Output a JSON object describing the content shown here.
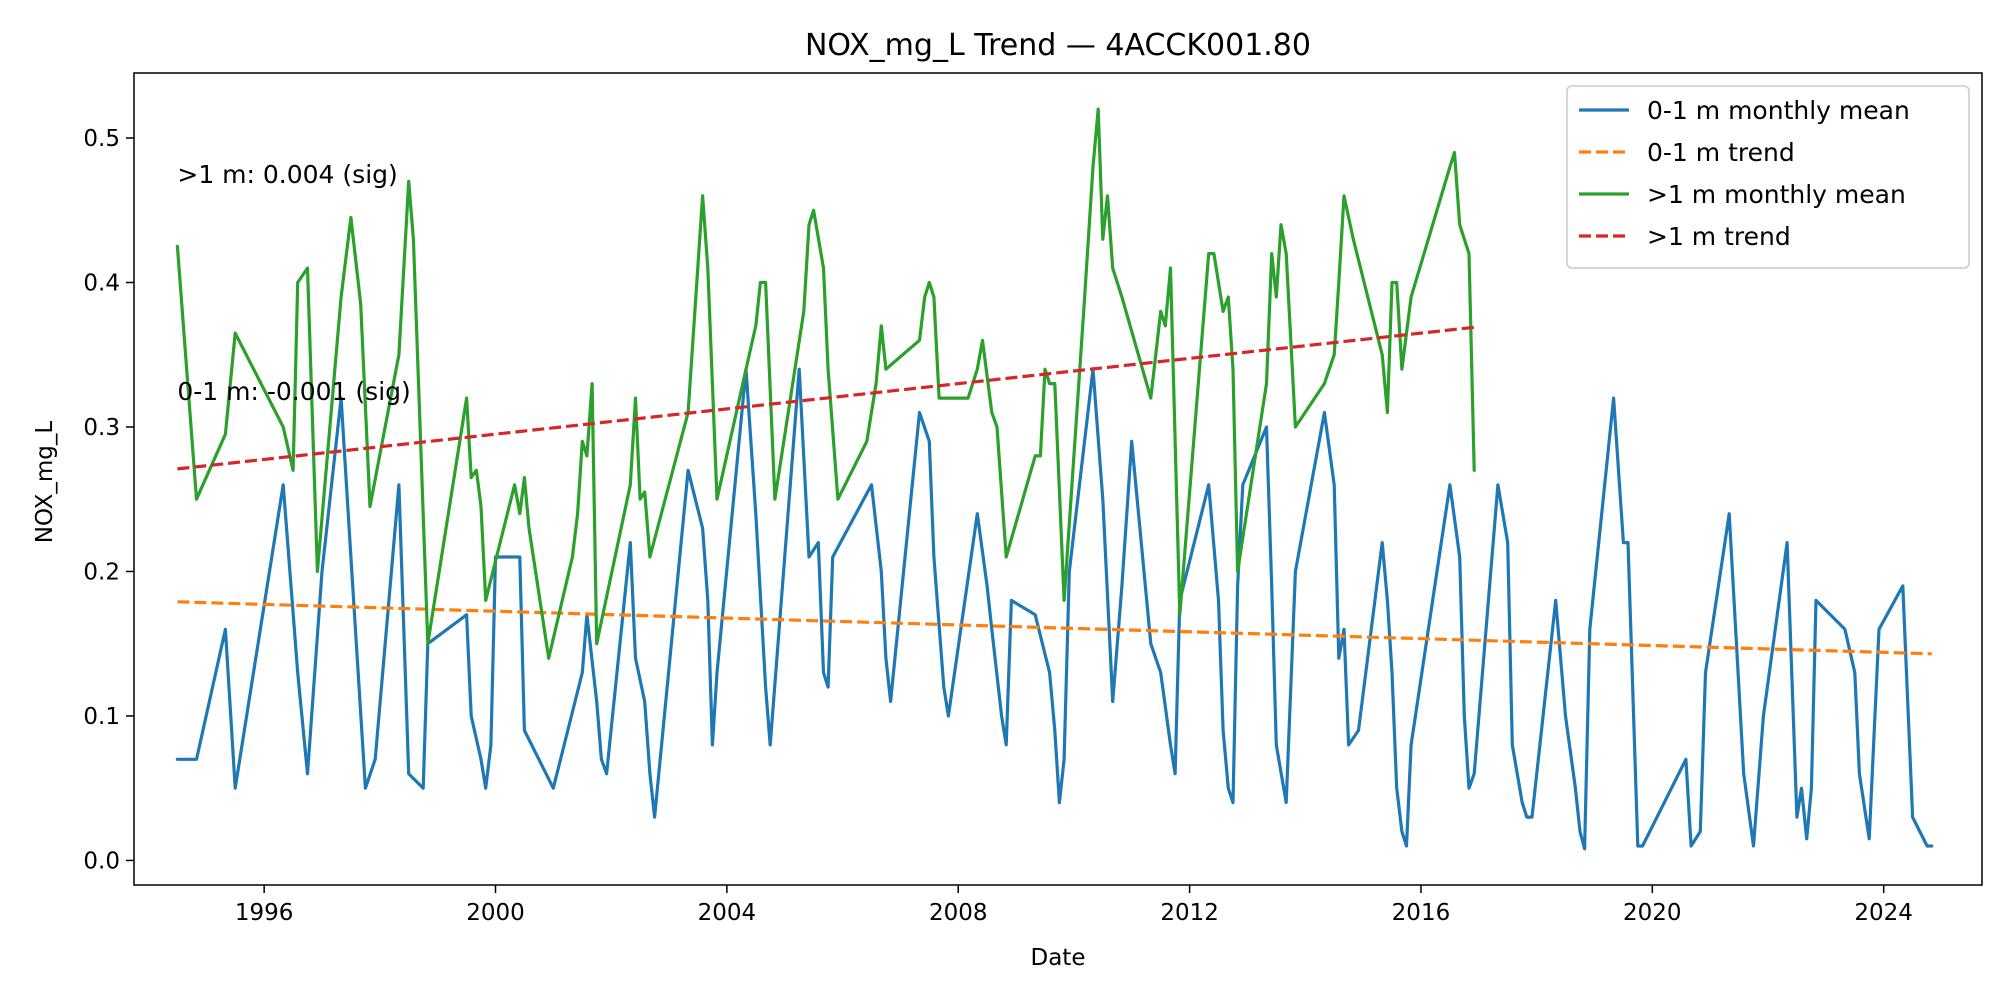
{
  "chart_data": {
    "type": "line",
    "title": "NOX_mg_L Trend — 4ACCK001.80",
    "xlabel": "Date",
    "ylabel": "NOX_mg_L",
    "x_axis": "date (decimal year)",
    "xlim": [
      1993.75,
      2025.7
    ],
    "ylim": [
      -0.017,
      0.545
    ],
    "x_ticks": [
      1996,
      2000,
      2004,
      2008,
      2012,
      2016,
      2020,
      2024
    ],
    "y_ticks": [
      0.0,
      0.1,
      0.2,
      0.3,
      0.4,
      0.5
    ],
    "y_tick_labels": [
      "0.0",
      "0.1",
      "0.2",
      "0.3",
      "0.4",
      "0.5"
    ],
    "grid": false,
    "legend_position": "top-right",
    "annotations": [
      {
        "text": ">1 m: 0.004 (sig)",
        "x": 1994.5,
        "y": 0.475
      },
      {
        "text": "0-1 m: -0.001 (sig)",
        "x": 1994.5,
        "y": 0.325
      }
    ],
    "series": [
      {
        "name": "0-1 m monthly mean",
        "color": "#1f77b4",
        "style": "solid",
        "x": [
          1994.5,
          1994.83,
          1995.33,
          1995.5,
          1996.33,
          1996.58,
          1996.75,
          1997.0,
          1997.33,
          1997.5,
          1997.75,
          1997.92,
          1998.33,
          1998.5,
          1998.75,
          1998.83,
          1999.5,
          1999.58,
          1999.75,
          1999.83,
          1999.92,
          2000.0,
          2000.17,
          2000.33,
          2000.42,
          2000.5,
          2001.0,
          2001.5,
          2001.58,
          2001.75,
          2001.83,
          2001.92,
          2002.33,
          2002.42,
          2002.58,
          2002.67,
          2002.75,
          2003.33,
          2003.58,
          2003.67,
          2003.75,
          2003.83,
          2004.33,
          2004.5,
          2004.67,
          2004.75,
          2005.25,
          2005.42,
          2005.58,
          2005.67,
          2005.75,
          2005.83,
          2006.5,
          2006.67,
          2006.75,
          2006.83,
          2007.33,
          2007.5,
          2007.58,
          2007.75,
          2007.83,
          2008.33,
          2008.5,
          2008.58,
          2008.75,
          2008.83,
          2008.92,
          2009.33,
          2009.58,
          2009.67,
          2009.75,
          2009.83,
          2009.92,
          2010.33,
          2010.5,
          2010.67,
          2010.83,
          2011.0,
          2011.33,
          2011.5,
          2011.67,
          2011.75,
          2011.83,
          2012.33,
          2012.5,
          2012.58,
          2012.67,
          2012.75,
          2012.83,
          2012.92,
          2013.33,
          2013.42,
          2013.5,
          2013.67,
          2013.83,
          2014.33,
          2014.5,
          2014.58,
          2014.67,
          2014.75,
          2014.92,
          2015.33,
          2015.42,
          2015.5,
          2015.58,
          2015.67,
          2015.75,
          2015.83,
          2016.5,
          2016.67,
          2016.75,
          2016.83,
          2016.92,
          2017.33,
          2017.5,
          2017.58,
          2017.75,
          2017.83,
          2017.92,
          2018.33,
          2018.5,
          2018.67,
          2018.75,
          2018.83,
          2018.92,
          2019.33,
          2019.5,
          2019.58,
          2019.75,
          2019.83,
          2020.58,
          2020.67,
          2020.83,
          2020.92,
          2021.33,
          2021.58,
          2021.75,
          2021.92,
          2022.33,
          2022.5,
          2022.58,
          2022.67,
          2022.75,
          2022.83,
          2023.33,
          2023.5,
          2023.58,
          2023.75,
          2023.92,
          2024.33,
          2024.5,
          2024.75,
          2024.83
        ],
        "y": [
          0.07,
          0.07,
          0.16,
          0.05,
          0.26,
          0.13,
          0.06,
          0.2,
          0.32,
          0.21,
          0.05,
          0.07,
          0.26,
          0.06,
          0.05,
          0.15,
          0.17,
          0.1,
          0.07,
          0.05,
          0.08,
          0.21,
          0.21,
          0.21,
          0.21,
          0.09,
          0.05,
          0.13,
          0.17,
          0.11,
          0.07,
          0.06,
          0.22,
          0.14,
          0.11,
          0.06,
          0.03,
          0.27,
          0.23,
          0.18,
          0.08,
          0.13,
          0.34,
          0.24,
          0.12,
          0.08,
          0.34,
          0.21,
          0.22,
          0.13,
          0.12,
          0.21,
          0.26,
          0.2,
          0.14,
          0.11,
          0.31,
          0.29,
          0.21,
          0.12,
          0.1,
          0.24,
          0.19,
          0.16,
          0.1,
          0.08,
          0.18,
          0.17,
          0.13,
          0.09,
          0.04,
          0.07,
          0.2,
          0.34,
          0.25,
          0.11,
          0.19,
          0.29,
          0.15,
          0.13,
          0.08,
          0.06,
          0.18,
          0.26,
          0.18,
          0.09,
          0.05,
          0.04,
          0.19,
          0.26,
          0.3,
          0.19,
          0.08,
          0.04,
          0.2,
          0.31,
          0.26,
          0.14,
          0.16,
          0.08,
          0.09,
          0.22,
          0.18,
          0.13,
          0.05,
          0.02,
          0.01,
          0.08,
          0.26,
          0.21,
          0.1,
          0.05,
          0.06,
          0.26,
          0.22,
          0.08,
          0.04,
          0.03,
          0.03,
          0.18,
          0.1,
          0.05,
          0.02,
          0.008,
          0.16,
          0.32,
          0.22,
          0.22,
          0.01,
          0.01,
          0.07,
          0.01,
          0.02,
          0.13,
          0.24,
          0.06,
          0.01,
          0.1,
          0.22,
          0.03,
          0.05,
          0.015,
          0.05,
          0.18,
          0.16,
          0.13,
          0.06,
          0.015,
          0.16,
          0.19,
          0.03,
          0.01,
          0.01
        ]
      },
      {
        "name": "0-1 m trend",
        "color": "#ff7f0e",
        "style": "dashed",
        "x": [
          1994.5,
          2024.83
        ],
        "y": [
          0.179,
          0.143
        ]
      },
      {
        "name": ">1 m monthly mean",
        "color": "#2ca02c",
        "style": "solid",
        "x": [
          1994.5,
          1994.83,
          1995.33,
          1995.5,
          1996.33,
          1996.5,
          1996.58,
          1996.75,
          1996.92,
          1997.33,
          1997.5,
          1997.67,
          1997.83,
          1998.33,
          1998.5,
          1998.58,
          1998.83,
          1999.5,
          1999.58,
          1999.67,
          1999.75,
          1999.83,
          2000.33,
          2000.42,
          2000.5,
          2000.58,
          2000.92,
          2001.33,
          2001.42,
          2001.5,
          2001.58,
          2001.67,
          2001.75,
          2002.33,
          2002.42,
          2002.5,
          2002.58,
          2002.67,
          2003.33,
          2003.58,
          2003.67,
          2003.83,
          2004.33,
          2004.5,
          2004.58,
          2004.67,
          2004.83,
          2005.33,
          2005.42,
          2005.5,
          2005.67,
          2005.75,
          2005.92,
          2006.42,
          2006.58,
          2006.67,
          2006.75,
          2007.33,
          2007.42,
          2007.5,
          2007.58,
          2007.67,
          2008.17,
          2008.33,
          2008.42,
          2008.58,
          2008.67,
          2008.83,
          2009.33,
          2009.42,
          2009.5,
          2009.58,
          2009.67,
          2009.83,
          2010.17,
          2010.33,
          2010.42,
          2010.5,
          2010.58,
          2010.67,
          2010.83,
          2011.33,
          2011.5,
          2011.58,
          2011.67,
          2011.83,
          2012.33,
          2012.42,
          2012.58,
          2012.67,
          2012.75,
          2012.83,
          2013.33,
          2013.42,
          2013.5,
          2013.58,
          2013.67,
          2013.83,
          2014.33,
          2014.5,
          2014.58,
          2014.67,
          2014.83,
          2015.33,
          2015.42,
          2015.5,
          2015.58,
          2015.67,
          2015.83,
          2016.5,
          2016.58,
          2016.67,
          2016.83,
          2016.92
        ],
        "y": [
          0.425,
          0.25,
          0.295,
          0.365,
          0.3,
          0.27,
          0.4,
          0.41,
          0.2,
          0.39,
          0.445,
          0.385,
          0.245,
          0.35,
          0.47,
          0.43,
          0.15,
          0.32,
          0.265,
          0.27,
          0.245,
          0.18,
          0.26,
          0.24,
          0.265,
          0.23,
          0.14,
          0.21,
          0.24,
          0.29,
          0.28,
          0.33,
          0.15,
          0.26,
          0.32,
          0.25,
          0.255,
          0.21,
          0.31,
          0.46,
          0.41,
          0.25,
          0.34,
          0.37,
          0.4,
          0.4,
          0.25,
          0.38,
          0.44,
          0.45,
          0.41,
          0.34,
          0.25,
          0.29,
          0.33,
          0.37,
          0.34,
          0.36,
          0.39,
          0.4,
          0.39,
          0.32,
          0.32,
          0.34,
          0.36,
          0.31,
          0.3,
          0.21,
          0.28,
          0.28,
          0.34,
          0.33,
          0.33,
          0.18,
          0.38,
          0.48,
          0.52,
          0.43,
          0.46,
          0.41,
          0.39,
          0.32,
          0.38,
          0.37,
          0.41,
          0.17,
          0.42,
          0.42,
          0.38,
          0.39,
          0.34,
          0.2,
          0.33,
          0.42,
          0.39,
          0.44,
          0.42,
          0.3,
          0.33,
          0.35,
          0.4,
          0.46,
          0.43,
          0.35,
          0.31,
          0.4,
          0.4,
          0.34,
          0.39,
          0.48,
          0.49,
          0.44,
          0.42,
          0.27
        ]
      },
      {
        "name": ">1 m trend",
        "color": "#d62728",
        "style": "dashed",
        "x": [
          1994.5,
          2016.92
        ],
        "y": [
          0.271,
          0.369
        ]
      }
    ]
  }
}
